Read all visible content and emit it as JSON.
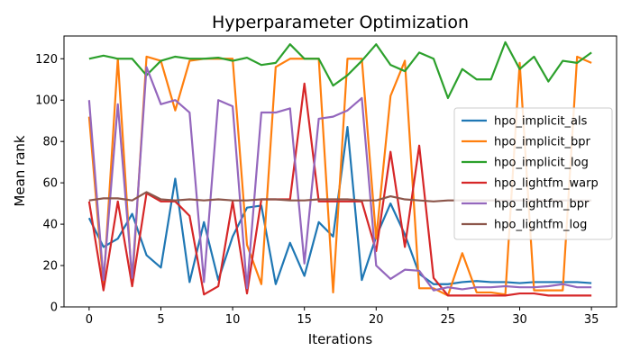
{
  "chart_data": {
    "type": "line",
    "title": "Hyperparameter Optimization",
    "xlabel": "Iterations",
    "ylabel": "Mean rank",
    "xlim": [
      -1.75,
      36.75
    ],
    "ylim": [
      0,
      131
    ],
    "xticks": [
      0,
      5,
      10,
      15,
      20,
      25,
      30,
      35
    ],
    "yticks": [
      0,
      20,
      40,
      60,
      80,
      100,
      120
    ],
    "grid": false,
    "legend_position": "center-right",
    "x": [
      0,
      1,
      2,
      3,
      4,
      5,
      6,
      7,
      8,
      9,
      10,
      11,
      12,
      13,
      14,
      15,
      16,
      17,
      18,
      19,
      20,
      21,
      22,
      23,
      24,
      25,
      26,
      27,
      28,
      29,
      30,
      31,
      32,
      33,
      34,
      35
    ],
    "series": [
      {
        "name": "hpo_implicit_als",
        "color": "#1f77b4",
        "values": [
          43,
          29,
          33,
          45,
          25,
          19,
          62,
          12,
          41,
          13,
          34,
          48,
          49,
          11,
          31,
          15,
          41,
          34,
          87,
          13,
          34,
          50,
          35,
          16,
          11,
          11,
          12,
          12.5,
          12,
          12,
          11.5,
          12,
          12,
          12,
          12,
          11.5
        ]
      },
      {
        "name": "hpo_implicit_bpr",
        "color": "#ff7f0e",
        "values": [
          92,
          10,
          120,
          10,
          121,
          119,
          95,
          119,
          120,
          120,
          120,
          30,
          11,
          116,
          120,
          120,
          120,
          7,
          120,
          120,
          33,
          102,
          119,
          9,
          9,
          5.5,
          26,
          7,
          7,
          6,
          118,
          8,
          8,
          8,
          121,
          118
        ]
      },
      {
        "name": "hpo_implicit_log",
        "color": "#2ca02c",
        "values": [
          120,
          121.5,
          120,
          120,
          112,
          119,
          121,
          120,
          120,
          120.5,
          119,
          120.5,
          117,
          118,
          127,
          120,
          120,
          107,
          112,
          119,
          127,
          117,
          114,
          123,
          120,
          101,
          115,
          110,
          110,
          128,
          115,
          121,
          109,
          119,
          118,
          123
        ]
      },
      {
        "name": "hpo_lightfm_warp",
        "color": "#d62728",
        "values": [
          51,
          8,
          51,
          10,
          55,
          51,
          51,
          44,
          6,
          10,
          51,
          6.5,
          52,
          52,
          52,
          108,
          51,
          51,
          51,
          51,
          27,
          75,
          29,
          78,
          14,
          5.5,
          5.5,
          5.5,
          5.5,
          5.5,
          6.5,
          6.5,
          5.5,
          5.5,
          5.5,
          5.5
        ]
      },
      {
        "name": "hpo_lightfm_bpr",
        "color": "#9467bd",
        "values": [
          100,
          13,
          98,
          14,
          116,
          98,
          100,
          94,
          12,
          100,
          97,
          9,
          94,
          94,
          96,
          21,
          91,
          92,
          95,
          101,
          20,
          13.5,
          18,
          17.5,
          8,
          9.5,
          8.5,
          9.5,
          9.5,
          10,
          9.5,
          9.5,
          10,
          11,
          9.5,
          9.5
        ]
      },
      {
        "name": "hpo_lightfm_log",
        "color": "#8c564b",
        "values": [
          51.5,
          52.5,
          52.5,
          51.5,
          55.5,
          52,
          51.5,
          52,
          51.5,
          52,
          51.5,
          51.5,
          52,
          52,
          51.5,
          51.5,
          52,
          52,
          52,
          51.5,
          51.5,
          53.5,
          52,
          51.5,
          51,
          51.5,
          51.5,
          51.5,
          51.5,
          51.5,
          51.5,
          51.5,
          51.5,
          51.5,
          51.5,
          51.5
        ]
      }
    ]
  }
}
